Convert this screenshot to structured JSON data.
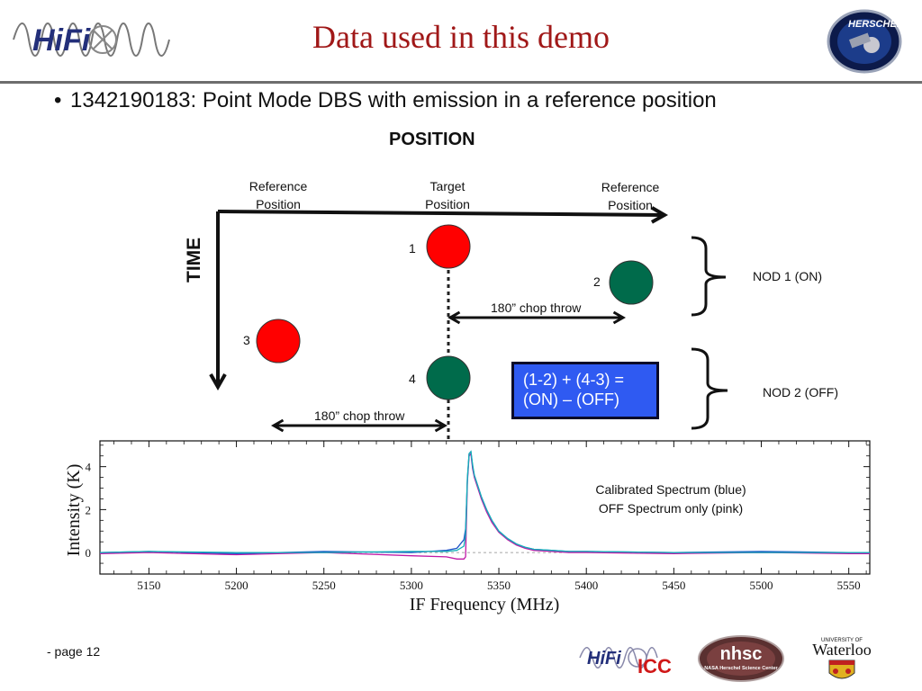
{
  "slide": {
    "title": "Data used in this demo",
    "bullet_marker": "•",
    "bullet": "1342190183: Point Mode DBS with emission in a reference position",
    "page": "- page 12"
  },
  "diagram": {
    "position_heading": "POSITION",
    "time_label": "TIME",
    "ref_left_label": [
      "Reference",
      "Position"
    ],
    "target_label": [
      "Target",
      "Position"
    ],
    "ref_right_label": [
      "Reference",
      "Position"
    ],
    "points": [
      {
        "label": "1",
        "color": "#ff0000"
      },
      {
        "label": "2",
        "color": "#006b4b"
      },
      {
        "label": "3",
        "color": "#ff0000"
      },
      {
        "label": "4",
        "color": "#006b4b"
      }
    ],
    "chop_throw_upper": "180” chop throw",
    "chop_throw_lower": "180” chop throw",
    "nod1": "NOD 1 (ON)",
    "nod2": "NOD 2 (OFF)",
    "equation_line1": "(1-2) + (4-3) =",
    "equation_line2": "(ON) – (OFF)",
    "equation_box_color": "#2f5af2"
  },
  "spectrum": {
    "note_line1": "Calibrated Spectrum (blue)",
    "note_line2": "OFF Spectrum only (pink)",
    "xlabel": "IF Frequency (MHz)",
    "ylabel": "Intensity (K)",
    "xticks": [
      "5150",
      "5200",
      "5250",
      "5300",
      "5350",
      "5400",
      "5450",
      "5500",
      "5550"
    ],
    "yticks": [
      "0",
      "2",
      "4"
    ]
  },
  "chart_data": {
    "type": "line",
    "xlabel": "IF Frequency (MHz)",
    "ylabel": "Intensity (K)",
    "xlim": [
      5122,
      5562
    ],
    "ylim": [
      -1.0,
      5.2
    ],
    "series": [
      {
        "name": "Calibrated Spectrum (blue)",
        "color": "#1f55c8",
        "x": [
          5122,
          5150,
          5200,
          5250,
          5300,
          5320,
          5326,
          5330,
          5331,
          5332,
          5333,
          5334,
          5335,
          5336,
          5338,
          5340,
          5343,
          5346,
          5350,
          5355,
          5360,
          5365,
          5370,
          5380,
          5390,
          5400,
          5450,
          5500,
          5550,
          5562
        ],
        "y": [
          0.0,
          0.05,
          -0.05,
          0.05,
          0.0,
          0.1,
          0.2,
          0.6,
          1.1,
          3.4,
          4.6,
          4.7,
          4.0,
          3.6,
          3.1,
          2.6,
          2.0,
          1.5,
          1.0,
          0.65,
          0.4,
          0.25,
          0.15,
          0.1,
          0.05,
          0.05,
          0.0,
          0.05,
          0.0,
          0.0
        ]
      },
      {
        "name": "OFF Spectrum only (pink)",
        "color": "#c01aa6",
        "x": [
          5122,
          5150,
          5200,
          5250,
          5300,
          5320,
          5326,
          5330,
          5331,
          5332,
          5333,
          5334,
          5335,
          5336,
          5338,
          5340,
          5343,
          5346,
          5350,
          5355,
          5360,
          5365,
          5370,
          5380,
          5390,
          5400,
          5450,
          5500,
          5550,
          5562
        ],
        "y": [
          -0.05,
          0.0,
          -0.1,
          0.0,
          -0.15,
          -0.2,
          -0.3,
          -0.3,
          -0.2,
          3.3,
          4.5,
          4.6,
          3.9,
          3.5,
          3.0,
          2.5,
          1.9,
          1.4,
          0.95,
          0.6,
          0.35,
          0.2,
          0.1,
          0.05,
          0.0,
          0.0,
          -0.05,
          0.0,
          -0.05,
          -0.05
        ]
      },
      {
        "name": "",
        "color": "#15b0b8",
        "x": [
          5122,
          5150,
          5200,
          5250,
          5300,
          5320,
          5326,
          5330,
          5331,
          5332,
          5333,
          5334,
          5335,
          5336,
          5338,
          5340,
          5343,
          5346,
          5350,
          5355,
          5360,
          5365,
          5370,
          5380,
          5390,
          5400,
          5450,
          5500,
          5550,
          5562
        ],
        "y": [
          0.0,
          0.05,
          0.0,
          0.0,
          0.05,
          0.05,
          0.1,
          0.3,
          0.8,
          3.5,
          4.6,
          4.7,
          4.1,
          3.6,
          3.1,
          2.6,
          2.0,
          1.5,
          1.0,
          0.65,
          0.4,
          0.25,
          0.15,
          0.1,
          0.05,
          0.05,
          0.0,
          0.0,
          0.0,
          0.0
        ]
      }
    ]
  },
  "logos": {
    "hifi": "HiFi",
    "herschel": "HERSCHEL",
    "hifi_icc": [
      "HiFi",
      "ICC"
    ],
    "nhsc": "nhsc",
    "nhsc_sub": "NASA Herschel Science Center",
    "waterloo_top": "UNIVERSITY OF",
    "waterloo": "Waterloo"
  }
}
